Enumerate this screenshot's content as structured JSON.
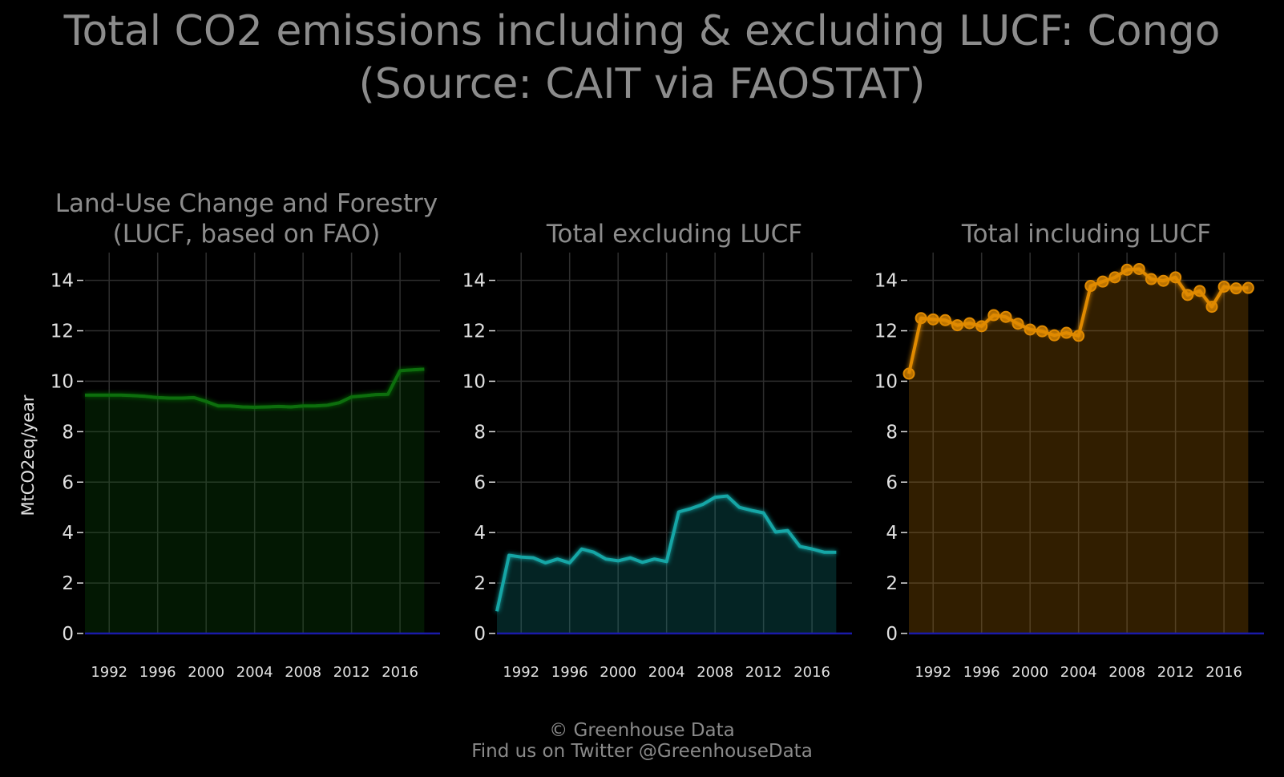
{
  "title_line1": "Total CO2 emissions including & excluding LUCF: Congo",
  "title_line2": "(Source: CAIT via FAOSTAT)",
  "ylabel": "MtCO2eq/year",
  "footer_line1": "© Greenhouse Data",
  "footer_line2": "Find us on Twitter @GreenhouseData",
  "colors": {
    "lucf": "#0c6e0c",
    "excl": "#12a6a6",
    "incl": "#e08a00",
    "zero_line": "#1a1aa8",
    "grid": "#2e2e2e"
  },
  "chart_data": [
    {
      "type": "area",
      "title_line1": "Land-Use Change and Forestry",
      "title_line2": "(LUCF, based on FAO)",
      "xticks": [
        1992,
        1996,
        2000,
        2004,
        2008,
        2012,
        2016
      ],
      "yticks": [
        0,
        2,
        4,
        6,
        8,
        10,
        12,
        14
      ],
      "xlim": [
        1990,
        2019.3
      ],
      "ylim": [
        0,
        15.1
      ],
      "markers": false,
      "series": [
        {
          "x": [
            1990,
            1991,
            1992,
            1993,
            1994,
            1995,
            1996,
            1997,
            1998,
            1999,
            2000,
            2001,
            2002,
            2003,
            2004,
            2005,
            2006,
            2007,
            2008,
            2009,
            2010,
            2011,
            2012,
            2013,
            2014,
            2015,
            2016,
            2017,
            2018
          ],
          "values": [
            9.45,
            9.45,
            9.45,
            9.45,
            9.43,
            9.4,
            9.35,
            9.33,
            9.33,
            9.35,
            9.2,
            9.02,
            9.02,
            8.98,
            8.97,
            8.98,
            9.0,
            8.98,
            9.02,
            9.02,
            9.05,
            9.15,
            9.38,
            9.42,
            9.47,
            9.48,
            10.42,
            10.45,
            10.48
          ]
        }
      ]
    },
    {
      "type": "area",
      "title_line1": "",
      "title_line2": "Total excluding LUCF",
      "xticks": [
        1992,
        1996,
        2000,
        2004,
        2008,
        2012,
        2016
      ],
      "yticks": [
        0,
        2,
        4,
        6,
        8,
        10,
        12,
        14
      ],
      "xlim": [
        1990,
        2019.3
      ],
      "ylim": [
        0,
        15.1
      ],
      "markers": false,
      "series": [
        {
          "x": [
            1990,
            1991,
            1992,
            1993,
            1994,
            1995,
            1996,
            1997,
            1998,
            1999,
            2000,
            2001,
            2002,
            2003,
            2004,
            2005,
            2006,
            2007,
            2008,
            2009,
            2010,
            2011,
            2012,
            2013,
            2014,
            2015,
            2016,
            2017,
            2018
          ],
          "values": [
            0.88,
            3.1,
            3.03,
            3.0,
            2.8,
            2.95,
            2.8,
            3.35,
            3.22,
            2.95,
            2.88,
            3.0,
            2.82,
            2.95,
            2.85,
            4.82,
            4.95,
            5.12,
            5.4,
            5.45,
            5.0,
            4.88,
            4.78,
            4.02,
            4.08,
            3.45,
            3.35,
            3.22,
            3.22
          ]
        }
      ]
    },
    {
      "type": "area",
      "title_line1": "",
      "title_line2": "Total including LUCF",
      "xticks": [
        1992,
        1996,
        2000,
        2004,
        2008,
        2012,
        2016
      ],
      "yticks": [
        0,
        2,
        4,
        6,
        8,
        10,
        12,
        14
      ],
      "xlim": [
        1990,
        2019.3
      ],
      "ylim": [
        0,
        15.1
      ],
      "markers": true,
      "series": [
        {
          "x": [
            1990,
            1991,
            1992,
            1993,
            1994,
            1995,
            1996,
            1997,
            1998,
            1999,
            2000,
            2001,
            2002,
            2003,
            2004,
            2005,
            2006,
            2007,
            2008,
            2009,
            2010,
            2011,
            2012,
            2013,
            2014,
            2015,
            2016,
            2017,
            2018
          ],
          "values": [
            10.3,
            12.5,
            12.45,
            12.42,
            12.22,
            12.3,
            12.18,
            12.62,
            12.55,
            12.28,
            12.05,
            11.98,
            11.82,
            11.92,
            11.8,
            13.78,
            13.95,
            14.12,
            14.42,
            14.45,
            14.05,
            13.98,
            14.12,
            13.42,
            13.58,
            12.95,
            13.75,
            13.68,
            13.7
          ]
        }
      ]
    }
  ]
}
